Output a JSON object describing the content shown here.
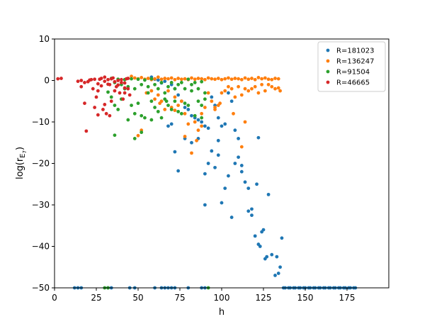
{
  "chart_data": {
    "type": "scatter",
    "title": "",
    "xlabel": "h",
    "ylabel_base": "log(r",
    "ylabel_sub": "E",
    "ylabel_subsub": "7",
    "ylabel_end": ")",
    "xlim": [
      0,
      200
    ],
    "ylim": [
      -50,
      10
    ],
    "xticks": [
      0,
      25,
      50,
      75,
      100,
      125,
      150,
      175
    ],
    "yticks": [
      10,
      0,
      -10,
      -20,
      -30,
      -40,
      -50
    ],
    "grid": false,
    "legend_position": "top-right",
    "series": [
      {
        "name": "R=181023",
        "color": "#1f77b4",
        "points": [
          [
            12,
            -50
          ],
          [
            14,
            -50
          ],
          [
            16,
            -50
          ],
          [
            32,
            -50
          ],
          [
            34,
            -50
          ],
          [
            45,
            -50
          ],
          [
            48,
            -50
          ],
          [
            60,
            -50
          ],
          [
            64,
            -50
          ],
          [
            66,
            -50
          ],
          [
            68,
            -50
          ],
          [
            70,
            -50
          ],
          [
            72,
            -50
          ],
          [
            80,
            -50
          ],
          [
            88,
            -50
          ],
          [
            90,
            -50
          ],
          [
            58,
            0.8
          ],
          [
            60,
            0.3
          ],
          [
            62,
            0.1
          ],
          [
            64,
            -0.6
          ],
          [
            66,
            -0.2
          ],
          [
            70,
            -1
          ],
          [
            72,
            -2
          ],
          [
            74,
            -3.5
          ],
          [
            76,
            -5
          ],
          [
            78,
            -6.5
          ],
          [
            80,
            -7
          ],
          [
            82,
            -8.5
          ],
          [
            84,
            -9
          ],
          [
            86,
            -9.5
          ],
          [
            88,
            -10
          ],
          [
            90,
            -11
          ],
          [
            92,
            -11.5
          ],
          [
            94,
            -4
          ],
          [
            96,
            -6
          ],
          [
            98,
            -9
          ],
          [
            100,
            -11
          ],
          [
            102,
            -10.5
          ],
          [
            104,
            -3
          ],
          [
            106,
            -5
          ],
          [
            108,
            -12
          ],
          [
            110,
            -14
          ],
          [
            68,
            -11
          ],
          [
            70,
            -10.5
          ],
          [
            72,
            -17.2
          ],
          [
            74,
            -21.8
          ],
          [
            78,
            -14
          ],
          [
            82,
            -15
          ],
          [
            86,
            -14
          ],
          [
            90,
            -22.5
          ],
          [
            92,
            -20
          ],
          [
            96,
            -21
          ],
          [
            98,
            -18
          ],
          [
            100,
            -29.5
          ],
          [
            102,
            -26
          ],
          [
            104,
            -23
          ],
          [
            106,
            -33
          ],
          [
            108,
            -20
          ],
          [
            110,
            -18.5
          ],
          [
            112,
            -20.5
          ],
          [
            114,
            -24.5
          ],
          [
            116,
            -26
          ],
          [
            118,
            -32.5
          ],
          [
            120,
            -37.5
          ],
          [
            122,
            -39.5
          ],
          [
            124,
            -36.5
          ],
          [
            126,
            -43
          ],
          [
            128,
            -27.5
          ],
          [
            130,
            -42
          ],
          [
            132,
            -47
          ],
          [
            134,
            -46.5
          ],
          [
            136,
            -38
          ],
          [
            112,
            -22
          ],
          [
            116,
            -31.5
          ],
          [
            118,
            -31
          ],
          [
            121,
            -25
          ],
          [
            123,
            -40
          ],
          [
            125,
            -36
          ],
          [
            127,
            -42.5
          ],
          [
            133,
            -42.5
          ],
          [
            135,
            -45
          ],
          [
            90,
            -30
          ],
          [
            94,
            -17
          ],
          [
            98,
            -14.5
          ],
          [
            122,
            -13.8
          ],
          [
            138,
            -50
          ],
          [
            141,
            -50
          ],
          [
            144,
            -50
          ],
          [
            147,
            -50
          ],
          [
            150,
            -50
          ],
          [
            153,
            -50
          ],
          [
            156,
            -50
          ],
          [
            159,
            -50
          ],
          [
            162,
            -50
          ],
          [
            165,
            -50
          ],
          [
            168,
            -50
          ],
          [
            171,
            -50
          ],
          [
            174,
            -50
          ],
          [
            177,
            -50
          ],
          [
            180,
            -50
          ],
          [
            137,
            -50
          ],
          [
            140,
            -50
          ],
          [
            143,
            -50
          ],
          [
            146,
            -50
          ],
          [
            149,
            -50
          ],
          [
            152,
            -50
          ],
          [
            155,
            -50
          ],
          [
            158,
            -50
          ],
          [
            161,
            -50
          ],
          [
            164,
            -50
          ],
          [
            167,
            -50
          ],
          [
            170,
            -50
          ],
          [
            173,
            -50
          ],
          [
            176,
            -50
          ],
          [
            179,
            -50
          ]
        ]
      },
      {
        "name": "R=136247",
        "color": "#ff7f0e",
        "points": [
          [
            46,
            1
          ],
          [
            48,
            0.6
          ],
          [
            50,
            0.4
          ],
          [
            52,
            0.7
          ],
          [
            54,
            0.3
          ],
          [
            56,
            0.5
          ],
          [
            58,
            0.2
          ],
          [
            60,
            0.4
          ],
          [
            62,
            0.8
          ],
          [
            64,
            0.3
          ],
          [
            66,
            0.5
          ],
          [
            68,
            0.4
          ],
          [
            70,
            0.6
          ],
          [
            72,
            0.2
          ],
          [
            74,
            0.5
          ],
          [
            76,
            0.3
          ],
          [
            78,
            0.4
          ],
          [
            80,
            0.2
          ],
          [
            82,
            0.6
          ],
          [
            84,
            0.3
          ],
          [
            86,
            0.5
          ],
          [
            88,
            0.4
          ],
          [
            90,
            0.2
          ],
          [
            92,
            0.6
          ],
          [
            94,
            0.4
          ],
          [
            96,
            0.3
          ],
          [
            98,
            0.5
          ],
          [
            100,
            0.2
          ],
          [
            102,
            0.4
          ],
          [
            104,
            0.6
          ],
          [
            106,
            0.3
          ],
          [
            108,
            0.5
          ],
          [
            110,
            0.4
          ],
          [
            112,
            0.2
          ],
          [
            114,
            0.6
          ],
          [
            116,
            0.3
          ],
          [
            118,
            0.5
          ],
          [
            120,
            0.2
          ],
          [
            122,
            0.7
          ],
          [
            124,
            0.4
          ],
          [
            126,
            0.6
          ],
          [
            128,
            0.3
          ],
          [
            130,
            0.2
          ],
          [
            132,
            0.5
          ],
          [
            134,
            0.4
          ],
          [
            55,
            -3
          ],
          [
            58,
            -2.5
          ],
          [
            62,
            -3.5
          ],
          [
            64,
            -5
          ],
          [
            66,
            -7
          ],
          [
            68,
            -2.5
          ],
          [
            70,
            -6.5
          ],
          [
            72,
            -4
          ],
          [
            74,
            -6
          ],
          [
            76,
            -5
          ],
          [
            78,
            -13.5
          ],
          [
            80,
            -10.5
          ],
          [
            82,
            -17.5
          ],
          [
            84,
            -10
          ],
          [
            86,
            -12
          ],
          [
            88,
            -8
          ],
          [
            90,
            -6.5
          ],
          [
            92,
            -3
          ],
          [
            94,
            -5
          ],
          [
            96,
            -7
          ],
          [
            98,
            -6
          ],
          [
            100,
            -3
          ],
          [
            102,
            -2.5
          ],
          [
            104,
            -1.5
          ],
          [
            106,
            -2
          ],
          [
            108,
            -4
          ],
          [
            110,
            -1.5
          ],
          [
            112,
            -3.5
          ],
          [
            114,
            -2
          ],
          [
            116,
            -2.5
          ],
          [
            118,
            -2
          ],
          [
            120,
            -1.5
          ],
          [
            122,
            -3
          ],
          [
            124,
            -1
          ],
          [
            126,
            -2.5
          ],
          [
            128,
            -1
          ],
          [
            130,
            -1.5
          ],
          [
            132,
            -2
          ],
          [
            134,
            -1.8
          ],
          [
            135,
            -2.5
          ],
          [
            50,
            -13.3
          ],
          [
            52,
            -12
          ],
          [
            60,
            -4.5
          ],
          [
            63,
            -5.5
          ],
          [
            72,
            -7.2
          ],
          [
            78,
            -8
          ],
          [
            85,
            -14.5
          ],
          [
            88,
            -11
          ],
          [
            96,
            -6.5
          ],
          [
            99,
            -5.5
          ],
          [
            107,
            -8
          ],
          [
            112,
            -16
          ],
          [
            114,
            -10
          ]
        ]
      },
      {
        "name": "R=91504",
        "color": "#2ca02c",
        "points": [
          [
            30,
            -50
          ],
          [
            32,
            -50
          ],
          [
            92,
            -50
          ],
          [
            34,
            0.5
          ],
          [
            36,
            -0.5
          ],
          [
            38,
            0.3
          ],
          [
            40,
            -1
          ],
          [
            42,
            0.2
          ],
          [
            44,
            -1.5
          ],
          [
            46,
            0.4
          ],
          [
            48,
            -2
          ],
          [
            50,
            0.3
          ],
          [
            52,
            -1
          ],
          [
            54,
            0.1
          ],
          [
            56,
            -1.5
          ],
          [
            58,
            0.4
          ],
          [
            60,
            -1
          ],
          [
            62,
            -2
          ],
          [
            64,
            -0.5
          ],
          [
            66,
            -3
          ],
          [
            68,
            -1.5
          ],
          [
            70,
            -0.5
          ],
          [
            72,
            -2
          ],
          [
            74,
            -1
          ],
          [
            76,
            -0.5
          ],
          [
            78,
            -2
          ],
          [
            80,
            0.3
          ],
          [
            82,
            -1
          ],
          [
            84,
            -0.5
          ],
          [
            86,
            -2
          ],
          [
            88,
            -0.3
          ],
          [
            90,
            -3
          ],
          [
            32,
            -2.8
          ],
          [
            34,
            -4
          ],
          [
            36,
            -6
          ],
          [
            38,
            -7
          ],
          [
            40,
            -4.5
          ],
          [
            42,
            -2
          ],
          [
            44,
            -9.5
          ],
          [
            46,
            -6
          ],
          [
            48,
            -8
          ],
          [
            50,
            -5.5
          ],
          [
            52,
            -8.5
          ],
          [
            54,
            -9
          ],
          [
            56,
            -3
          ],
          [
            58,
            -5
          ],
          [
            60,
            -6.5
          ],
          [
            62,
            -7.5
          ],
          [
            64,
            -9
          ],
          [
            66,
            -4.5
          ],
          [
            68,
            -6
          ],
          [
            70,
            -7
          ],
          [
            72,
            -5
          ],
          [
            74,
            -7.5
          ],
          [
            76,
            -8
          ],
          [
            78,
            -5.5
          ],
          [
            80,
            -6
          ],
          [
            84,
            -8.5
          ],
          [
            86,
            -5
          ],
          [
            88,
            -6
          ],
          [
            90,
            -4.5
          ],
          [
            36,
            -13.2
          ],
          [
            48,
            -14
          ],
          [
            52,
            -12.5
          ],
          [
            58,
            -9.5
          ],
          [
            67,
            -5
          ],
          [
            82,
            -2.5
          ],
          [
            88,
            -9
          ]
        ]
      },
      {
        "name": "R=46665",
        "color": "#d62728",
        "points": [
          [
            2,
            0.4
          ],
          [
            4,
            0.5
          ],
          [
            14,
            -0.2
          ],
          [
            16,
            -1.5
          ],
          [
            18,
            -5.5
          ],
          [
            19,
            -12.2
          ],
          [
            20,
            -0.3
          ],
          [
            22,
            0.2
          ],
          [
            23,
            -2
          ],
          [
            24,
            -6.5
          ],
          [
            25,
            -4
          ],
          [
            26,
            -2.5
          ],
          [
            27,
            0.3
          ],
          [
            28,
            -1.3
          ],
          [
            29,
            -7
          ],
          [
            30,
            0.8
          ],
          [
            31,
            -8
          ],
          [
            32,
            0.2
          ],
          [
            33,
            -1
          ],
          [
            34,
            -5
          ],
          [
            35,
            0.6
          ],
          [
            36,
            -2.5
          ],
          [
            37,
            -1.5
          ],
          [
            38,
            0
          ],
          [
            39,
            -3
          ],
          [
            40,
            -0.5
          ],
          [
            41,
            -4.5
          ],
          [
            42,
            -1.8
          ],
          [
            43,
            0.4
          ],
          [
            44,
            -2
          ],
          [
            45,
            -3.5
          ],
          [
            16,
            0
          ],
          [
            18,
            -0.5
          ],
          [
            21,
            0.1
          ],
          [
            24,
            0.3
          ],
          [
            26,
            -0.8
          ],
          [
            28,
            0.5
          ],
          [
            30,
            -0.2
          ],
          [
            32,
            -0.9
          ],
          [
            34,
            0.4
          ],
          [
            36,
            -0.3
          ],
          [
            38,
            -1.1
          ],
          [
            40,
            0.2
          ],
          [
            42,
            -0.6
          ],
          [
            44,
            0.5
          ],
          [
            30,
            -5.8
          ],
          [
            26,
            -8.3
          ],
          [
            33,
            -8.5
          ],
          [
            42,
            -3
          ]
        ]
      }
    ]
  }
}
